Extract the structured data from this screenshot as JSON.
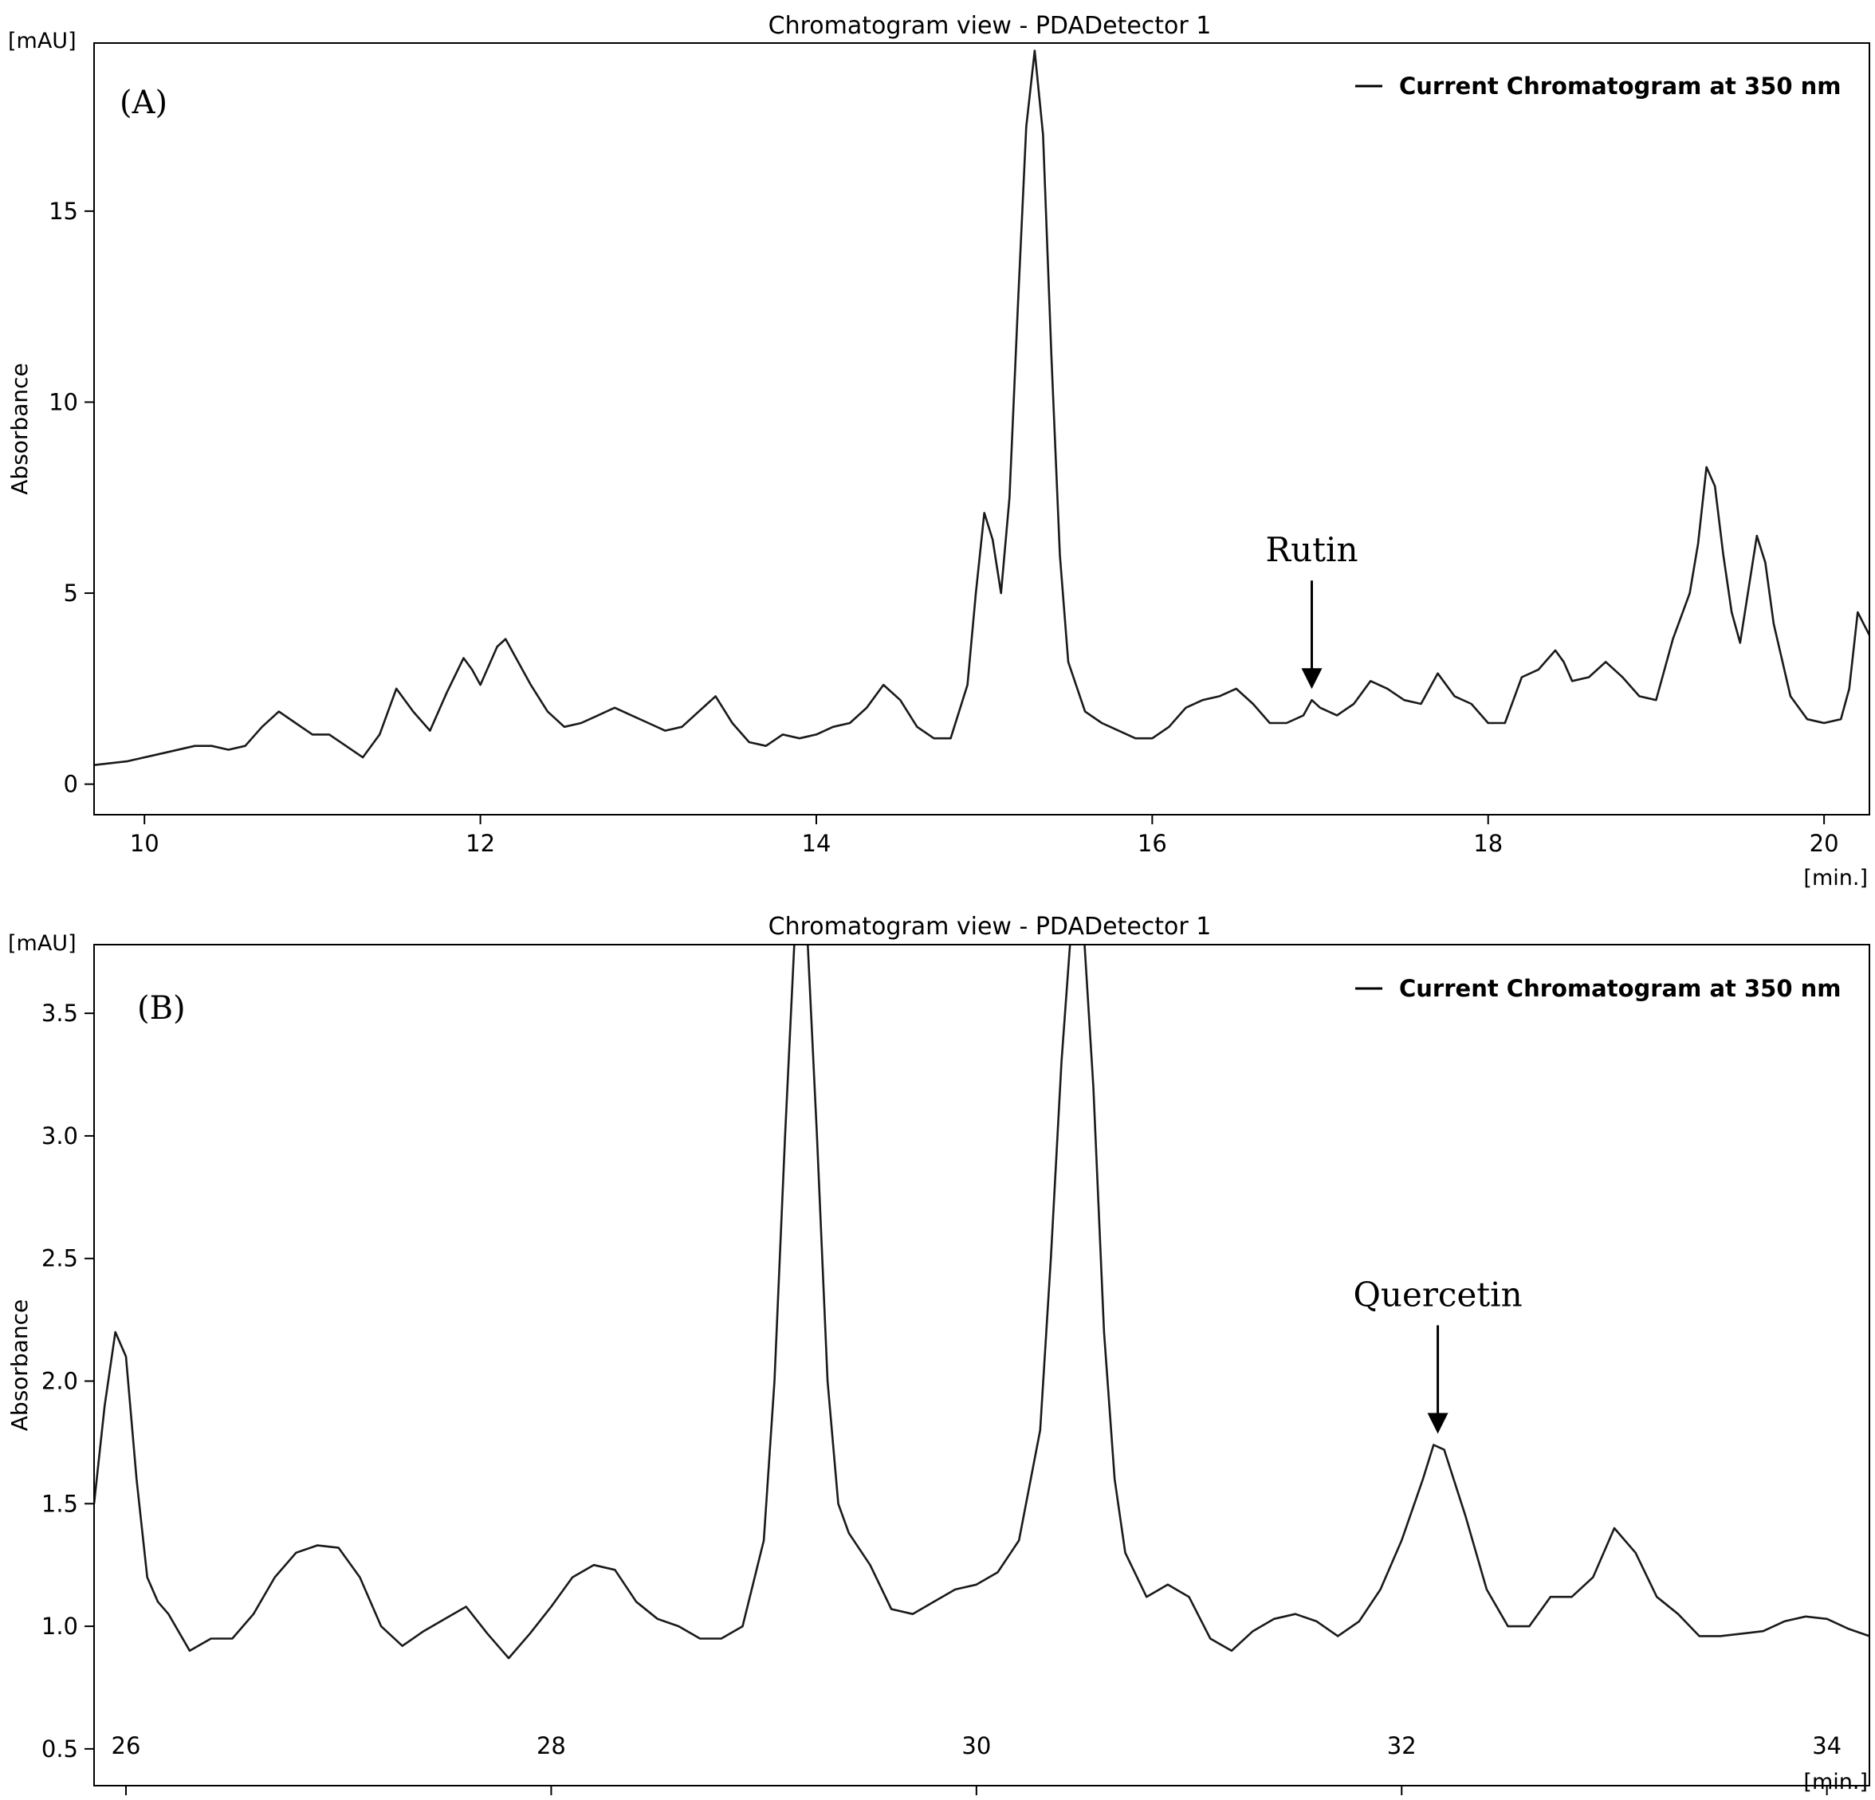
{
  "chart_data": [
    {
      "type": "line",
      "title": "Chromatogram view - PDADetector 1",
      "panel_label": "(A)",
      "y_unit": "[mAU]",
      "x_unit": "[min.]",
      "ylabel": "Absorbance",
      "xlim": [
        9.7,
        20.27
      ],
      "ylim": [
        -0.8,
        19.4
      ],
      "x_ticks": [
        "10",
        "12",
        "14",
        "16",
        "18",
        "20"
      ],
      "y_ticks": [
        "0",
        "5",
        "10",
        "15"
      ],
      "legend": {
        "label": "Current Chromatogram at 350 nm",
        "position": "top-right"
      },
      "annotations": [
        {
          "text": "Rutin",
          "x": 16.95,
          "y": 2.2
        }
      ],
      "series": [
        {
          "color": "#1a1a1a",
          "x": [
            9.7,
            9.9,
            10.1,
            10.3,
            10.4,
            10.5,
            10.6,
            10.7,
            10.8,
            10.9,
            11.0,
            11.1,
            11.2,
            11.3,
            11.4,
            11.5,
            11.6,
            11.7,
            11.8,
            11.9,
            11.95,
            12.0,
            12.1,
            12.15,
            12.2,
            12.3,
            12.4,
            12.5,
            12.6,
            12.7,
            12.8,
            12.9,
            13.0,
            13.1,
            13.2,
            13.3,
            13.4,
            13.5,
            13.6,
            13.7,
            13.8,
            13.9,
            14.0,
            14.1,
            14.2,
            14.3,
            14.4,
            14.5,
            14.6,
            14.7,
            14.8,
            14.9,
            14.95,
            15.0,
            15.05,
            15.1,
            15.15,
            15.2,
            15.25,
            15.3,
            15.35,
            15.4,
            15.45,
            15.5,
            15.6,
            15.7,
            15.8,
            15.9,
            16.0,
            16.1,
            16.2,
            16.3,
            16.4,
            16.5,
            16.6,
            16.7,
            16.8,
            16.9,
            16.95,
            17.0,
            17.1,
            17.2,
            17.3,
            17.4,
            17.5,
            17.6,
            17.7,
            17.8,
            17.9,
            18.0,
            18.1,
            18.2,
            18.3,
            18.4,
            18.45,
            18.5,
            18.6,
            18.7,
            18.8,
            18.9,
            19.0,
            19.1,
            19.2,
            19.25,
            19.3,
            19.35,
            19.4,
            19.45,
            19.5,
            19.55,
            19.6,
            19.65,
            19.7,
            19.8,
            19.9,
            20.0,
            20.1,
            20.15,
            20.2,
            20.27
          ],
          "y": [
            0.5,
            0.6,
            0.8,
            1.0,
            1.0,
            0.9,
            1.0,
            1.5,
            1.9,
            1.6,
            1.3,
            1.3,
            1.0,
            0.7,
            1.3,
            2.5,
            1.9,
            1.4,
            2.4,
            3.3,
            3.0,
            2.6,
            3.6,
            3.8,
            3.4,
            2.6,
            1.9,
            1.5,
            1.6,
            1.8,
            2.0,
            1.8,
            1.6,
            1.4,
            1.5,
            1.9,
            2.3,
            1.6,
            1.1,
            1.0,
            1.3,
            1.2,
            1.3,
            1.5,
            1.6,
            2.0,
            2.6,
            2.2,
            1.5,
            1.2,
            1.2,
            2.6,
            5.0,
            7.1,
            6.4,
            5.0,
            7.5,
            12.5,
            17.2,
            19.2,
            17.0,
            11.2,
            6.0,
            3.2,
            1.9,
            1.6,
            1.4,
            1.2,
            1.2,
            1.5,
            2.0,
            2.2,
            2.3,
            2.5,
            2.1,
            1.6,
            1.6,
            1.8,
            2.2,
            2.0,
            1.8,
            2.1,
            2.7,
            2.5,
            2.2,
            2.1,
            2.9,
            2.3,
            2.1,
            1.6,
            1.6,
            2.8,
            3.0,
            3.5,
            3.2,
            2.7,
            2.8,
            3.2,
            2.8,
            2.3,
            2.2,
            3.8,
            5.0,
            6.3,
            8.3,
            7.8,
            6.0,
            4.5,
            3.7,
            5.1,
            6.5,
            5.8,
            4.2,
            2.3,
            1.7,
            1.6,
            1.7,
            2.5,
            4.5,
            3.9
          ]
        }
      ]
    },
    {
      "type": "line",
      "title": "Chromatogram view - PDADetector 1",
      "panel_label": "(B)",
      "y_unit": "[mAU]",
      "x_unit": "[min.]",
      "ylabel": "Absorbance",
      "xlim": [
        25.85,
        34.2
      ],
      "ylim": [
        0.35,
        3.78
      ],
      "x_ticks": [
        "26",
        "28",
        "30",
        "32",
        "34"
      ],
      "y_ticks": [
        "0.5",
        "1.0",
        "1.5",
        "2.0",
        "2.5",
        "3.0",
        "3.5"
      ],
      "legend": {
        "label": "Current Chromatogram at 350 nm",
        "position": "top-right"
      },
      "annotations": [
        {
          "text": "Quercetin",
          "x": 32.17,
          "y": 1.74
        }
      ],
      "series": [
        {
          "color": "#1a1a1a",
          "x": [
            25.85,
            25.9,
            25.95,
            26.0,
            26.05,
            26.1,
            26.15,
            26.2,
            26.3,
            26.4,
            26.5,
            26.6,
            26.7,
            26.8,
            26.9,
            27.0,
            27.1,
            27.2,
            27.3,
            27.4,
            27.5,
            27.6,
            27.7,
            27.8,
            27.9,
            28.0,
            28.1,
            28.2,
            28.3,
            28.4,
            28.5,
            28.6,
            28.7,
            28.8,
            28.9,
            29.0,
            29.05,
            29.1,
            29.15,
            29.2,
            29.25,
            29.3,
            29.35,
            29.4,
            29.5,
            29.6,
            29.7,
            29.8,
            29.9,
            30.0,
            30.1,
            30.2,
            30.3,
            30.35,
            30.4,
            30.45,
            30.5,
            30.55,
            30.6,
            30.65,
            30.7,
            30.8,
            30.9,
            31.0,
            31.1,
            31.2,
            31.3,
            31.4,
            31.5,
            31.6,
            31.7,
            31.8,
            31.9,
            32.0,
            32.1,
            32.15,
            32.2,
            32.3,
            32.4,
            32.5,
            32.6,
            32.7,
            32.8,
            32.9,
            33.0,
            33.1,
            33.2,
            33.3,
            33.4,
            33.5,
            33.6,
            33.7,
            33.8,
            33.9,
            34.0,
            34.1,
            34.2
          ],
          "y": [
            1.5,
            1.9,
            2.2,
            2.1,
            1.6,
            1.2,
            1.1,
            1.05,
            0.9,
            0.95,
            0.95,
            1.05,
            1.2,
            1.3,
            1.33,
            1.32,
            1.2,
            1.0,
            0.92,
            0.98,
            1.03,
            1.08,
            0.97,
            0.87,
            0.97,
            1.08,
            1.2,
            1.25,
            1.23,
            1.1,
            1.03,
            1.0,
            0.95,
            0.95,
            1.0,
            1.35,
            2.0,
            3.0,
            3.9,
            3.9,
            3.0,
            2.0,
            1.5,
            1.38,
            1.25,
            1.07,
            1.05,
            1.1,
            1.15,
            1.17,
            1.22,
            1.35,
            1.8,
            2.5,
            3.3,
            3.9,
            3.9,
            3.2,
            2.2,
            1.6,
            1.3,
            1.12,
            1.17,
            1.12,
            0.95,
            0.9,
            0.98,
            1.03,
            1.05,
            1.02,
            0.96,
            1.02,
            1.15,
            1.35,
            1.6,
            1.74,
            1.72,
            1.45,
            1.15,
            1.0,
            1.0,
            1.12,
            1.12,
            1.2,
            1.4,
            1.3,
            1.12,
            1.05,
            0.96,
            0.96,
            0.97,
            0.98,
            1.02,
            1.04,
            1.03,
            0.99,
            0.96
          ]
        }
      ]
    }
  ]
}
